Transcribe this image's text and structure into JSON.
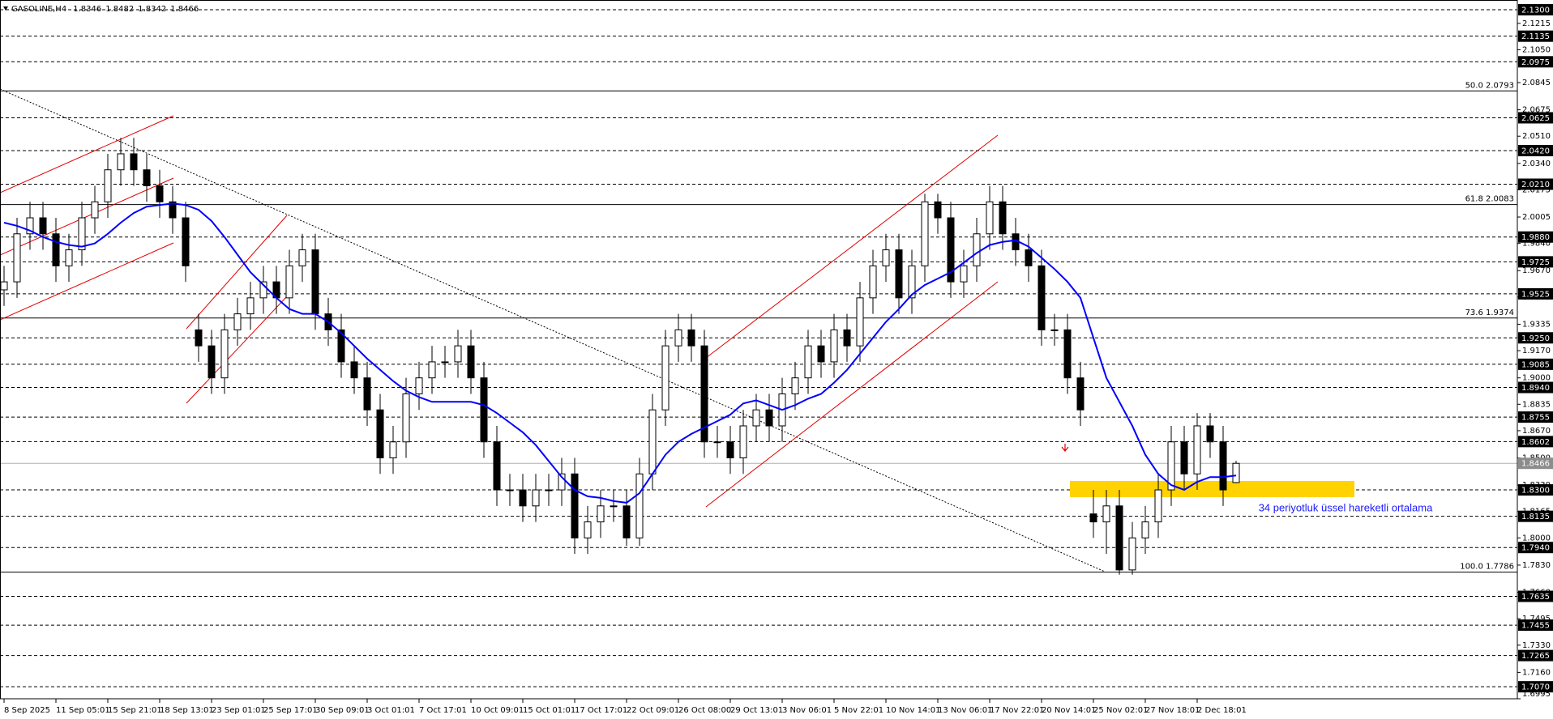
{
  "chart_data": {
    "type": "candlestick",
    "title": "GASOLINE,H4",
    "candle_color": "#000000",
    "open": [
      1.955,
      1.96,
      1.99,
      2.0,
      1.99,
      1.97,
      1.98,
      2.0,
      2.01,
      2.03,
      2.04,
      2.03,
      2.02,
      2.01,
      2.0,
      1.93,
      1.92,
      1.9,
      1.93,
      1.94,
      1.95,
      1.96,
      1.95,
      1.97,
      1.98,
      1.94,
      1.93,
      1.91,
      1.9,
      1.88,
      1.85,
      1.86,
      1.89,
      1.9,
      1.91,
      1.91,
      1.92,
      1.9,
      1.86,
      1.83,
      1.83,
      1.82,
      1.83,
      1.83,
      1.84,
      1.8,
      1.81,
      1.82,
      1.82,
      1.8,
      1.84,
      1.88,
      1.92,
      1.93,
      1.92,
      1.86,
      1.86,
      1.85,
      1.87,
      1.88,
      1.87,
      1.89,
      1.9,
      1.92,
      1.91,
      1.93,
      1.92,
      1.95,
      1.97,
      1.98,
      1.95,
      1.97,
      2.01,
      2.0,
      1.96,
      1.97,
      1.99,
      2.01,
      1.99,
      1.98,
      1.97,
      1.93,
      1.93,
      1.9,
      1.815,
      1.81,
      1.82,
      1.78,
      1.8,
      1.81,
      1.83,
      1.86,
      1.84,
      1.87,
      1.86,
      1.8346
    ],
    "high": [
      1.97,
      2.0,
      2.01,
      2.01,
      2.0,
      1.99,
      2.01,
      2.02,
      2.04,
      2.05,
      2.05,
      2.04,
      2.03,
      2.02,
      2.01,
      1.94,
      1.93,
      1.94,
      1.95,
      1.96,
      1.97,
      1.97,
      1.98,
      1.99,
      1.99,
      1.95,
      1.94,
      1.92,
      1.91,
      1.89,
      1.87,
      1.9,
      1.91,
      1.92,
      1.92,
      1.93,
      1.93,
      1.91,
      1.87,
      1.84,
      1.84,
      1.84,
      1.84,
      1.85,
      1.85,
      1.82,
      1.83,
      1.83,
      1.83,
      1.85,
      1.89,
      1.93,
      1.94,
      1.94,
      1.93,
      1.87,
      1.87,
      1.88,
      1.89,
      1.89,
      1.9,
      1.91,
      1.93,
      1.93,
      1.94,
      1.94,
      1.96,
      1.98,
      1.99,
      1.99,
      1.98,
      2.015,
      2.015,
      2.01,
      1.98,
      2.0,
      2.02,
      2.02,
      2.0,
      1.99,
      1.98,
      1.94,
      1.94,
      1.91,
      1.83,
      1.83,
      1.83,
      1.81,
      1.82,
      1.84,
      1.87,
      1.87,
      1.878,
      1.878,
      1.87,
      1.8482
    ],
    "low": [
      1.945,
      1.95,
      1.98,
      1.98,
      1.96,
      1.96,
      1.97,
      1.99,
      2.0,
      2.02,
      2.02,
      2.01,
      2.0,
      1.99,
      1.96,
      1.91,
      1.89,
      1.89,
      1.92,
      1.93,
      1.94,
      1.94,
      1.94,
      1.96,
      1.93,
      1.92,
      1.9,
      1.89,
      1.87,
      1.84,
      1.84,
      1.85,
      1.88,
      1.89,
      1.9,
      1.9,
      1.89,
      1.85,
      1.82,
      1.82,
      1.81,
      1.81,
      1.82,
      1.82,
      1.79,
      1.79,
      1.8,
      1.81,
      1.795,
      1.795,
      1.83,
      1.87,
      1.91,
      1.91,
      1.85,
      1.85,
      1.84,
      1.84,
      1.86,
      1.86,
      1.86,
      1.88,
      1.89,
      1.9,
      1.9,
      1.91,
      1.91,
      1.94,
      1.96,
      1.94,
      1.94,
      1.96,
      1.99,
      1.95,
      1.95,
      1.96,
      1.98,
      1.98,
      1.97,
      1.96,
      1.92,
      1.92,
      1.89,
      1.87,
      1.8,
      1.79,
      1.777,
      1.777,
      1.79,
      1.8,
      1.82,
      1.83,
      1.83,
      1.85,
      1.82,
      1.8342
    ],
    "close": [
      1.96,
      1.99,
      2.0,
      1.99,
      1.97,
      1.98,
      2.0,
      2.01,
      2.03,
      2.04,
      2.03,
      2.02,
      2.01,
      2.0,
      1.97,
      1.92,
      1.9,
      1.93,
      1.94,
      1.95,
      1.96,
      1.95,
      1.97,
      1.98,
      1.94,
      1.93,
      1.91,
      1.9,
      1.88,
      1.85,
      1.86,
      1.89,
      1.9,
      1.91,
      1.91,
      1.92,
      1.9,
      1.86,
      1.83,
      1.83,
      1.82,
      1.83,
      1.83,
      1.84,
      1.8,
      1.81,
      1.82,
      1.82,
      1.8,
      1.84,
      1.88,
      1.92,
      1.93,
      1.92,
      1.86,
      1.86,
      1.85,
      1.87,
      1.88,
      1.87,
      1.89,
      1.9,
      1.92,
      1.91,
      1.93,
      1.92,
      1.95,
      1.97,
      1.98,
      1.95,
      1.97,
      2.01,
      2.0,
      1.96,
      1.97,
      1.99,
      2.01,
      1.99,
      1.98,
      1.97,
      1.93,
      1.93,
      1.9,
      1.88,
      1.81,
      1.82,
      1.78,
      1.8,
      1.81,
      1.83,
      1.86,
      1.84,
      1.87,
      1.86,
      1.83,
      1.8466
    ],
    "series": [
      {
        "name": "34 periyotluk üssel hareketli ortalama",
        "color": "#0000ff",
        "values": [
          1.997,
          1.995,
          1.992,
          1.988,
          1.985,
          1.983,
          1.982,
          1.984,
          1.99,
          1.997,
          2.003,
          2.007,
          2.008,
          2.009,
          2.008,
          2.005,
          1.998,
          1.988,
          1.977,
          1.966,
          1.958,
          1.95,
          1.943,
          1.94,
          1.94,
          1.935,
          1.928,
          1.92,
          1.912,
          1.905,
          1.898,
          1.892,
          1.888,
          1.885,
          1.885,
          1.885,
          1.885,
          1.883,
          1.878,
          1.872,
          1.866,
          1.858,
          1.848,
          1.838,
          1.83,
          1.826,
          1.825,
          1.823,
          1.822,
          1.828,
          1.84,
          1.852,
          1.86,
          1.865,
          1.869,
          1.873,
          1.877,
          1.884,
          1.886,
          1.883,
          1.88,
          1.883,
          1.887,
          1.89,
          1.897,
          1.905,
          1.915,
          1.925,
          1.935,
          1.943,
          1.952,
          1.958,
          1.962,
          1.966,
          1.972,
          1.978,
          1.983,
          1.985,
          1.986,
          1.982,
          1.975,
          1.968,
          1.96,
          1.95,
          1.925,
          1.9,
          1.885,
          1.87,
          1.852,
          1.84,
          1.833,
          1.83,
          1.835,
          1.838,
          1.838,
          1.839
        ]
      }
    ],
    "current_price": 1.8466,
    "levels": [
      {
        "value": 2.13,
        "label": "2.1300"
      },
      {
        "value": 2.1135,
        "label": "2.1135"
      },
      {
        "value": 2.0975,
        "label": "2.0975"
      },
      {
        "value": 2.0625,
        "label": "2.0625"
      },
      {
        "value": 2.042,
        "label": "2.0420"
      },
      {
        "value": 2.021,
        "label": "2.0210"
      },
      {
        "value": 1.988,
        "label": "1.9880"
      },
      {
        "value": 1.9725,
        "label": "1.9725"
      },
      {
        "value": 1.9525,
        "label": "1.9525"
      },
      {
        "value": 1.925,
        "label": "1.9250"
      },
      {
        "value": 1.9085,
        "label": "1.9085"
      },
      {
        "value": 1.894,
        "label": "1.8940"
      },
      {
        "value": 1.8755,
        "label": "1.8755"
      },
      {
        "value": 1.8602,
        "label": "1.8602"
      },
      {
        "value": 1.83,
        "label": "1.8300"
      },
      {
        "value": 1.8135,
        "label": "1.8135"
      },
      {
        "value": 1.794,
        "label": "1.7940"
      },
      {
        "value": 1.7635,
        "label": "1.7635"
      },
      {
        "value": 1.7455,
        "label": "1.7455"
      },
      {
        "value": 1.7265,
        "label": "1.7265"
      },
      {
        "value": 1.707,
        "label": "1.7070"
      }
    ],
    "fib_levels": [
      {
        "value": 2.0793,
        "label": "50.0 2.0793"
      },
      {
        "value": 2.0083,
        "label": "61.8 2.0083"
      },
      {
        "value": 1.9374,
        "label": "73.6 1.9374"
      },
      {
        "value": 1.7786,
        "label": "100.0 1.7786"
      }
    ],
    "ylim": [
      1.6995,
      2.1361
    ],
    "yticks": [
      {
        "value": 2.1215,
        "label": "2.1215"
      },
      {
        "value": 2.105,
        "label": "2.1050"
      },
      {
        "value": 2.0845,
        "label": "2.0845"
      },
      {
        "value": 2.0675,
        "label": "2.0675"
      },
      {
        "value": 2.051,
        "label": "2.0510"
      },
      {
        "value": 2.034,
        "label": "2.0340"
      },
      {
        "value": 2.0175,
        "label": "2.0175"
      },
      {
        "value": 2.0005,
        "label": "2.0005"
      },
      {
        "value": 1.984,
        "label": "1.9840"
      },
      {
        "value": 1.967,
        "label": "1.9670"
      },
      {
        "value": 1.9505,
        "label": "1.9505"
      },
      {
        "value": 1.9335,
        "label": "1.9335"
      },
      {
        "value": 1.917,
        "label": "1.9170"
      },
      {
        "value": 1.9,
        "label": "1.9000"
      },
      {
        "value": 1.8835,
        "label": "1.8835"
      },
      {
        "value": 1.867,
        "label": "1.8670"
      },
      {
        "value": 1.85,
        "label": "1.8500"
      },
      {
        "value": 1.833,
        "label": "1.8330"
      },
      {
        "value": 1.8165,
        "label": "1.8165"
      },
      {
        "value": 1.8,
        "label": "1.8000"
      },
      {
        "value": 1.783,
        "label": "1.7830"
      },
      {
        "value": 1.766,
        "label": "1.7660"
      },
      {
        "value": 1.7495,
        "label": "1.7495"
      },
      {
        "value": 1.733,
        "label": "1.7330"
      },
      {
        "value": 1.716,
        "label": "1.7160"
      },
      {
        "value": 1.6995,
        "label": "1.6995"
      }
    ],
    "xlim": [
      -0.3125,
      116.6875
    ],
    "xticks": [
      {
        "value": 0,
        "label": "8 Sep 2025"
      },
      {
        "value": 4,
        "label": "11 Sep 05:01"
      },
      {
        "value": 8,
        "label": "15 Sep 21:01"
      },
      {
        "value": 12,
        "label": "18 Sep 13:01"
      },
      {
        "value": 16,
        "label": "23 Sep 01:01"
      },
      {
        "value": 20,
        "label": "25 Sep 17:01"
      },
      {
        "value": 24,
        "label": "30 Sep 09:01"
      },
      {
        "value": 28,
        "label": "3 Oct 01:01"
      },
      {
        "value": 32,
        "label": "7 Oct 17:01"
      },
      {
        "value": 36,
        "label": "10 Oct 09:01"
      },
      {
        "value": 40,
        "label": "15 Oct 01:01"
      },
      {
        "value": 44,
        "label": "17 Oct 17:01"
      },
      {
        "value": 48,
        "label": "22 Oct 09:01"
      },
      {
        "value": 52,
        "label": "26 Oct 08:00"
      },
      {
        "value": 56,
        "label": "29 Oct 13:01"
      },
      {
        "value": 60,
        "label": "3 Nov 06:01"
      },
      {
        "value": 64,
        "label": "5 Nov 22:01"
      },
      {
        "value": 68,
        "label": "10 Nov 14:01"
      },
      {
        "value": 72,
        "label": "13 Nov 06:01"
      },
      {
        "value": 76,
        "label": "17 Nov 22:01"
      },
      {
        "value": 80,
        "label": "20 Nov 14:01"
      },
      {
        "value": 84,
        "label": "25 Nov 02:01"
      },
      {
        "value": 88,
        "label": "27 Nov 18:01"
      },
      {
        "value": 92,
        "label": "2 Dec 18:01"
      }
    ]
  }
}
